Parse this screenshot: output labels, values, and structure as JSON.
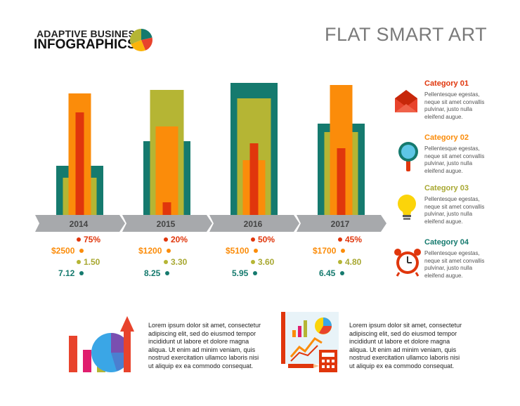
{
  "header": {
    "logo_line1": "ADAPTIVE BUSINESS",
    "logo_line2": "INFOGRAPHICS",
    "title": "FLAT SMART ART"
  },
  "colors": {
    "teal": "#157a6e",
    "olive": "#b5b534",
    "orange": "#fb8c0a",
    "red": "#e0360c",
    "grey": "#a7a9ac",
    "cat1": "#e0360c",
    "cat2": "#fb8c0a",
    "cat3": "#b5b534",
    "cat4": "#157a6e"
  },
  "chart_data": {
    "type": "bar",
    "categories": [
      "2014",
      "2015",
      "2016",
      "2017"
    ],
    "series": [
      {
        "name": "Category 04",
        "color": "teal",
        "values": [
          72,
          107,
          190,
          132
        ]
      },
      {
        "name": "Category 03",
        "color": "olive",
        "values": [
          55,
          180,
          168,
          120
        ]
      },
      {
        "name": "Category 02",
        "color": "orange",
        "values": [
          175,
          128,
          80,
          187
        ]
      },
      {
        "name": "Category 01",
        "color": "red",
        "values": [
          148,
          20,
          104,
          97
        ]
      }
    ],
    "ylim": [
      0,
      200
    ],
    "stats": [
      {
        "pct": "75%",
        "money": "$2500",
        "ratio": "1.50",
        "value": "7.12"
      },
      {
        "pct": "20%",
        "money": "$1200",
        "ratio": "3.30",
        "value": "8.25"
      },
      {
        "pct": "50%",
        "money": "$5100",
        "ratio": "3.60",
        "value": "5.95"
      },
      {
        "pct": "45%",
        "money": "$1700",
        "ratio": "4.80",
        "value": "6.45"
      }
    ]
  },
  "legend": [
    {
      "title": "Category 01",
      "body": [
        "Pellentesque egestas,",
        "neque sit amet convallis",
        "pulvinar, justo nulla",
        "eleifend augue."
      ],
      "icon": "envelope-icon"
    },
    {
      "title": "Category 02",
      "body": [
        "Pellentesque egestas,",
        "neque sit amet convallis",
        "pulvinar, justo nulla",
        "eleifend augue."
      ],
      "icon": "magnifier-icon"
    },
    {
      "title": "Category 03",
      "body": [
        "Pellentesque egestas,",
        "neque sit amet convallis",
        "pulvinar, justo nulla",
        "eleifend augue."
      ],
      "icon": "lightbulb-icon"
    },
    {
      "title": "Category 04",
      "body": [
        "Pellentesque egestas,",
        "neque sit amet convallis",
        "pulvinar, justo nulla",
        "eleifend augue."
      ],
      "icon": "alarm-clock-icon"
    }
  ],
  "bottom": {
    "left_text": [
      "Lorem ipsum dolor sit amet, consectetur",
      "adipiscing elit, sed do eiusmod tempor",
      "incididunt ut labore et dolore magna",
      "aliqua. Ut enim ad minim veniam, quis",
      "nostrud exercitation ullamco laboris nisi",
      "ut aliquip ex ea commodo consequat."
    ],
    "right_text": [
      "Lorem ipsum dolor sit amet, consectetur",
      "adipiscing elit, sed do eiusmod tempor",
      "incididunt ut labore et dolore magna",
      "aliqua. Ut enim ad minim veniam, quis",
      "nostrud exercitation ullamco laboris nisi",
      "ut aliquip ex ea commodo consequat."
    ]
  }
}
